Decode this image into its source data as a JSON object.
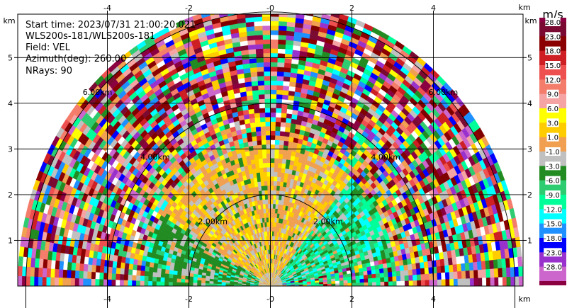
{
  "info": {
    "lines": [
      "Start time: 2023/07/31 21:00:20.021",
      "WLS200s-181/WLS200s-181",
      "Field: VEL",
      "Azimuth(deg): 260.00",
      "NRays: 90"
    ]
  },
  "chart_data": {
    "type": "heatmap",
    "subtype": "radar-ppi-half-disk",
    "x_unit": "km",
    "y_unit": "km",
    "xlim": [
      -6.2,
      6.2
    ],
    "ylim": [
      0,
      5.95
    ],
    "x_ticks": [
      {
        "value": -4,
        "label": "-4"
      },
      {
        "value": -2,
        "label": "-2"
      },
      {
        "value": 0,
        "label": "-0"
      },
      {
        "value": 2,
        "label": "2"
      },
      {
        "value": 4,
        "label": "4"
      }
    ],
    "y_ticks": [
      {
        "value": 1,
        "label": "1"
      },
      {
        "value": 2,
        "label": "2"
      },
      {
        "value": 3,
        "label": "3"
      },
      {
        "value": 4,
        "label": "4"
      },
      {
        "value": 5,
        "label": "5"
      }
    ],
    "grid": true,
    "max_range_km": 6.2,
    "range_rings": [
      {
        "radius": 2,
        "label": "2.00km"
      },
      {
        "radius": 4,
        "label": "4.00km"
      },
      {
        "radius": 6,
        "label": "6.00km"
      }
    ],
    "colorbar": {
      "unit": "m/s",
      "bins": [
        {
          "label": "28.0",
          "color": "#7a0a32"
        },
        {
          "label": "23.0",
          "color": "#8b0000"
        },
        {
          "label": "18.0",
          "color": "#cd1f24"
        },
        {
          "label": "15.0",
          "color": "#ee4f4f"
        },
        {
          "label": "12.0",
          "color": "#f47c6a"
        },
        {
          "label": "9.0",
          "color": "#f5a3a3"
        },
        {
          "label": "6.0",
          "color": "#ffff00"
        },
        {
          "label": "3.0",
          "color": "#ffcc00"
        },
        {
          "label": "1.0",
          "color": "#f0a050"
        },
        {
          "label": "-1.0",
          "color": "#c0c0c0"
        },
        {
          "label": "-3.0",
          "color": "#228b22"
        },
        {
          "label": "-6.0",
          "color": "#2ecc71"
        },
        {
          "label": "-9.0",
          "color": "#00ff99"
        },
        {
          "label": "-12.0",
          "color": "#00ffff"
        },
        {
          "label": "-15.0",
          "color": "#1e90ff"
        },
        {
          "label": "-18.0",
          "color": "#0000ff"
        },
        {
          "label": "-23.0",
          "color": "#9932cc"
        },
        {
          "label": "-28.0",
          "color": "#cc66cc"
        }
      ],
      "end_color": "#8b0040"
    }
  }
}
